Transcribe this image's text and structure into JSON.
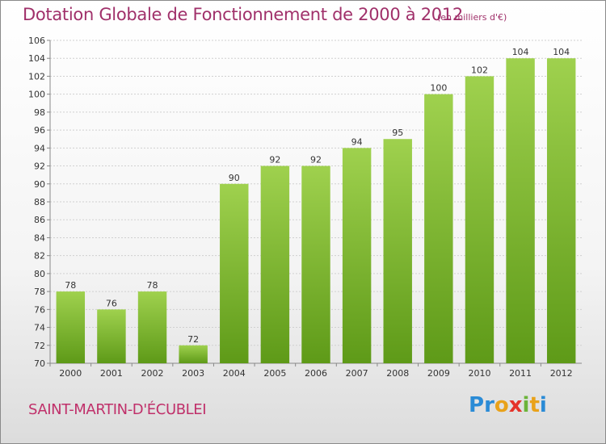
{
  "header": {
    "title": "Dotation Globale de Fonctionnement de 2000 à 2012",
    "unit": "(en milliers d'€)"
  },
  "footer": {
    "commune": "SAINT-MARTIN-D'ÉCUBLEI",
    "logo_letters": [
      "P",
      "r",
      "o",
      "x",
      "i",
      "t",
      "i"
    ],
    "logo_colors": [
      "#2a8bd6",
      "#2a8bd6",
      "#e9a21a",
      "#e5332a",
      "#6cb43a",
      "#e9a21a",
      "#2a8bd6"
    ]
  },
  "chart_data": {
    "type": "bar",
    "title": "Dotation Globale de Fonctionnement de 2000 à 2012",
    "xlabel": "",
    "ylabel": "",
    "categories": [
      "2000",
      "2001",
      "2002",
      "2003",
      "2004",
      "2005",
      "2006",
      "2007",
      "2008",
      "2009",
      "2010",
      "2011",
      "2012"
    ],
    "values": [
      78,
      76,
      78,
      72,
      90,
      92,
      92,
      94,
      95,
      100,
      102,
      104,
      104
    ],
    "ylim": [
      70,
      106
    ],
    "yticks": [
      70,
      72,
      74,
      76,
      78,
      80,
      82,
      84,
      86,
      88,
      90,
      92,
      94,
      96,
      98,
      100,
      102,
      104,
      106
    ],
    "grid": true,
    "bar_color_top": "#9fd14e",
    "bar_color_bottom": "#5e9a18"
  }
}
